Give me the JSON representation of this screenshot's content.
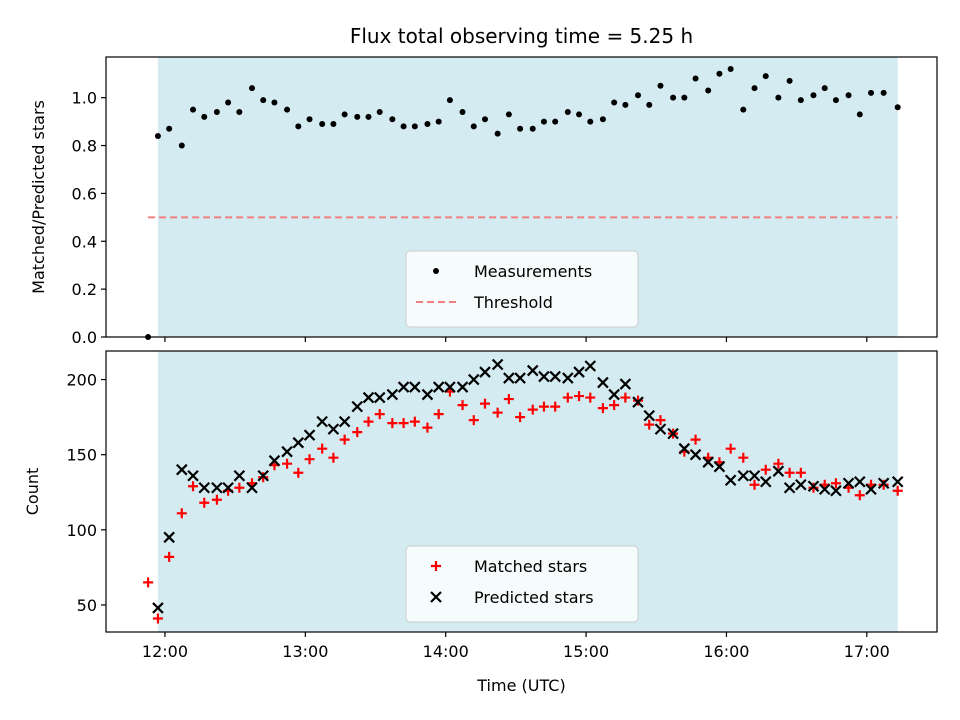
{
  "chart_data": [
    {
      "type": "scatter",
      "title": "Flux total observing time = 5.25 h",
      "xlabel": "",
      "ylabel": "Matched/Predicted stars",
      "ylim": [
        0,
        1.17
      ],
      "yticks": [
        "0.0",
        "0.2",
        "0.4",
        "0.6",
        "0.8",
        "1.0"
      ],
      "xlim_hours": [
        11.58,
        17.5
      ],
      "observing_window_hours": [
        11.95,
        17.22
      ],
      "grid": false,
      "legend_position": "bottom-center",
      "shade_color": "#d3ebf1",
      "threshold": {
        "name": "Threshold",
        "value": 0.5,
        "color": "#f08080",
        "xrange_hours": [
          11.88,
          17.22
        ]
      },
      "series": [
        {
          "name": "Measurements",
          "color": "#000000",
          "marker": "dot",
          "x_hours": [
            11.88,
            11.95,
            12.03,
            12.12,
            12.2,
            12.28,
            12.37,
            12.45,
            12.53,
            12.62,
            12.7,
            12.78,
            12.87,
            12.95,
            13.03,
            13.12,
            13.2,
            13.28,
            13.37,
            13.45,
            13.53,
            13.62,
            13.7,
            13.78,
            13.87,
            13.95,
            14.03,
            14.12,
            14.2,
            14.28,
            14.37,
            14.45,
            14.53,
            14.62,
            14.7,
            14.78,
            14.87,
            14.95,
            15.03,
            15.12,
            15.2,
            15.28,
            15.37,
            15.45,
            15.53,
            15.62,
            15.7,
            15.78,
            15.87,
            15.95,
            16.03,
            16.12,
            16.2,
            16.28,
            16.37,
            16.45,
            16.53,
            16.62,
            16.7,
            16.78,
            16.87,
            16.95,
            17.03,
            17.12,
            17.22
          ],
          "y": [
            0.0,
            0.84,
            0.87,
            0.8,
            0.95,
            0.92,
            0.94,
            0.98,
            0.94,
            1.04,
            0.99,
            0.98,
            0.95,
            0.88,
            0.91,
            0.89,
            0.89,
            0.93,
            0.92,
            0.92,
            0.94,
            0.91,
            0.88,
            0.88,
            0.89,
            0.9,
            0.99,
            0.94,
            0.88,
            0.91,
            0.85,
            0.93,
            0.87,
            0.87,
            0.9,
            0.9,
            0.94,
            0.93,
            0.9,
            0.91,
            0.98,
            0.97,
            1.01,
            0.97,
            1.05,
            1.0,
            1.0,
            1.08,
            1.03,
            1.1,
            1.12,
            0.95,
            1.04,
            1.09,
            1.0,
            1.07,
            0.99,
            1.01,
            1.04,
            0.99,
            1.01,
            0.93,
            1.02,
            1.02,
            0.96
          ]
        }
      ]
    },
    {
      "type": "scatter",
      "title": "",
      "xlabel": "Time (UTC)",
      "ylabel": "Count",
      "ylim": [
        32,
        219
      ],
      "yticks": [
        "50",
        "100",
        "150",
        "200"
      ],
      "xlim_hours": [
        11.58,
        17.5
      ],
      "xticks": [
        "12:00",
        "13:00",
        "14:00",
        "15:00",
        "16:00",
        "17:00"
      ],
      "observing_window_hours": [
        11.95,
        17.22
      ],
      "grid": false,
      "legend_position": "bottom-center",
      "shade_color": "#d3ebf1",
      "series": [
        {
          "name": "Matched stars",
          "color": "#ff0000",
          "marker": "plus",
          "x_hours": [
            11.88,
            11.95,
            12.03,
            12.12,
            12.2,
            12.28,
            12.37,
            12.45,
            12.53,
            12.62,
            12.7,
            12.78,
            12.87,
            12.95,
            13.03,
            13.12,
            13.2,
            13.28,
            13.37,
            13.45,
            13.53,
            13.62,
            13.7,
            13.78,
            13.87,
            13.95,
            14.03,
            14.12,
            14.2,
            14.28,
            14.37,
            14.45,
            14.53,
            14.62,
            14.7,
            14.78,
            14.87,
            14.95,
            15.03,
            15.12,
            15.2,
            15.28,
            15.37,
            15.45,
            15.53,
            15.62,
            15.7,
            15.78,
            15.87,
            15.95,
            16.03,
            16.12,
            16.2,
            16.28,
            16.37,
            16.45,
            16.53,
            16.62,
            16.7,
            16.78,
            16.87,
            16.95,
            17.03,
            17.12,
            17.22
          ],
          "y": [
            65,
            41,
            82,
            111,
            129,
            118,
            120,
            126,
            128,
            131,
            135,
            143,
            144,
            138,
            147,
            154,
            148,
            160,
            165,
            172,
            177,
            171,
            171,
            172,
            168,
            177,
            192,
            183,
            173,
            184,
            178,
            187,
            175,
            180,
            182,
            182,
            188,
            189,
            188,
            181,
            183,
            188,
            186,
            170,
            173,
            164,
            152,
            160,
            148,
            145,
            154,
            148,
            130,
            140,
            144,
            138,
            138,
            128,
            130,
            131,
            128,
            123,
            130,
            130,
            126
          ]
        },
        {
          "name": "Predicted stars",
          "color": "#000000",
          "marker": "x",
          "x_hours": [
            11.95,
            12.03,
            12.12,
            12.2,
            12.28,
            12.37,
            12.45,
            12.53,
            12.62,
            12.7,
            12.78,
            12.87,
            12.95,
            13.03,
            13.12,
            13.2,
            13.28,
            13.37,
            13.45,
            13.53,
            13.62,
            13.7,
            13.78,
            13.87,
            13.95,
            14.03,
            14.12,
            14.2,
            14.28,
            14.37,
            14.45,
            14.53,
            14.62,
            14.7,
            14.78,
            14.87,
            14.95,
            15.03,
            15.12,
            15.2,
            15.28,
            15.37,
            15.45,
            15.53,
            15.62,
            15.7,
            15.78,
            15.87,
            15.95,
            16.03,
            16.12,
            16.2,
            16.28,
            16.37,
            16.45,
            16.53,
            16.62,
            16.7,
            16.78,
            16.87,
            16.95,
            17.03,
            17.12,
            17.22
          ],
          "y": [
            48,
            95,
            140,
            136,
            128,
            128,
            128,
            136,
            128,
            136,
            146,
            152,
            158,
            163,
            172,
            167,
            172,
            182,
            188,
            188,
            190,
            195,
            195,
            190,
            195,
            195,
            195,
            200,
            205,
            210,
            201,
            201,
            206,
            202,
            202,
            201,
            205,
            209,
            198,
            190,
            197,
            185,
            176,
            167,
            164,
            154,
            150,
            145,
            142,
            133,
            136,
            136,
            132,
            139,
            128,
            130,
            129,
            127,
            126,
            131,
            132,
            127,
            131,
            132
          ]
        }
      ]
    }
  ]
}
